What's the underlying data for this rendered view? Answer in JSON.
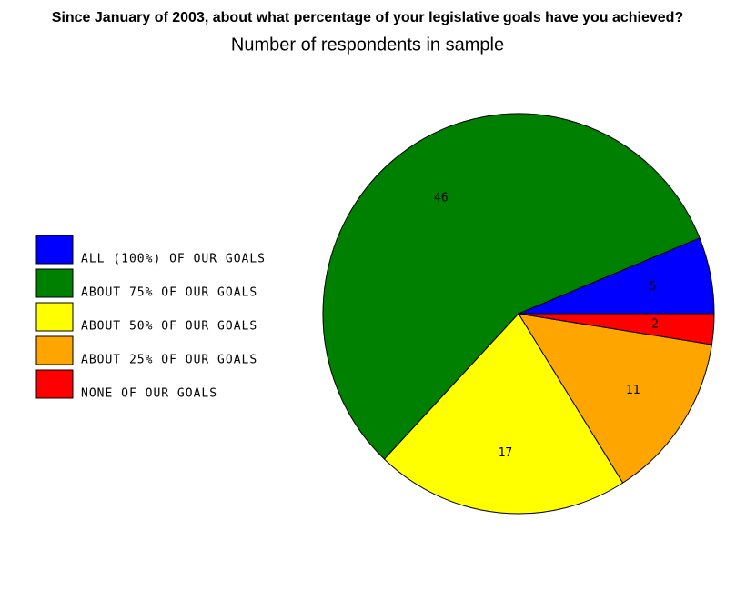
{
  "chart_data": {
    "type": "pie",
    "title": "Since January of 2003, about what percentage of your legislative goals have you achieved?",
    "subtitle": "Number of respondents in sample",
    "categories": [
      "ALL (100%) OF OUR GOALS",
      "ABOUT 75% OF OUR GOALS",
      "ABOUT 50% OF OUR GOALS",
      "ABOUT 25% OF OUR GOALS",
      "NONE OF OUR GOALS"
    ],
    "values": [
      5,
      46,
      17,
      11,
      2
    ],
    "colors": [
      "#0000ff",
      "#008000",
      "#ffff00",
      "#ffa500",
      "#ff0000"
    ],
    "legend": "left"
  }
}
